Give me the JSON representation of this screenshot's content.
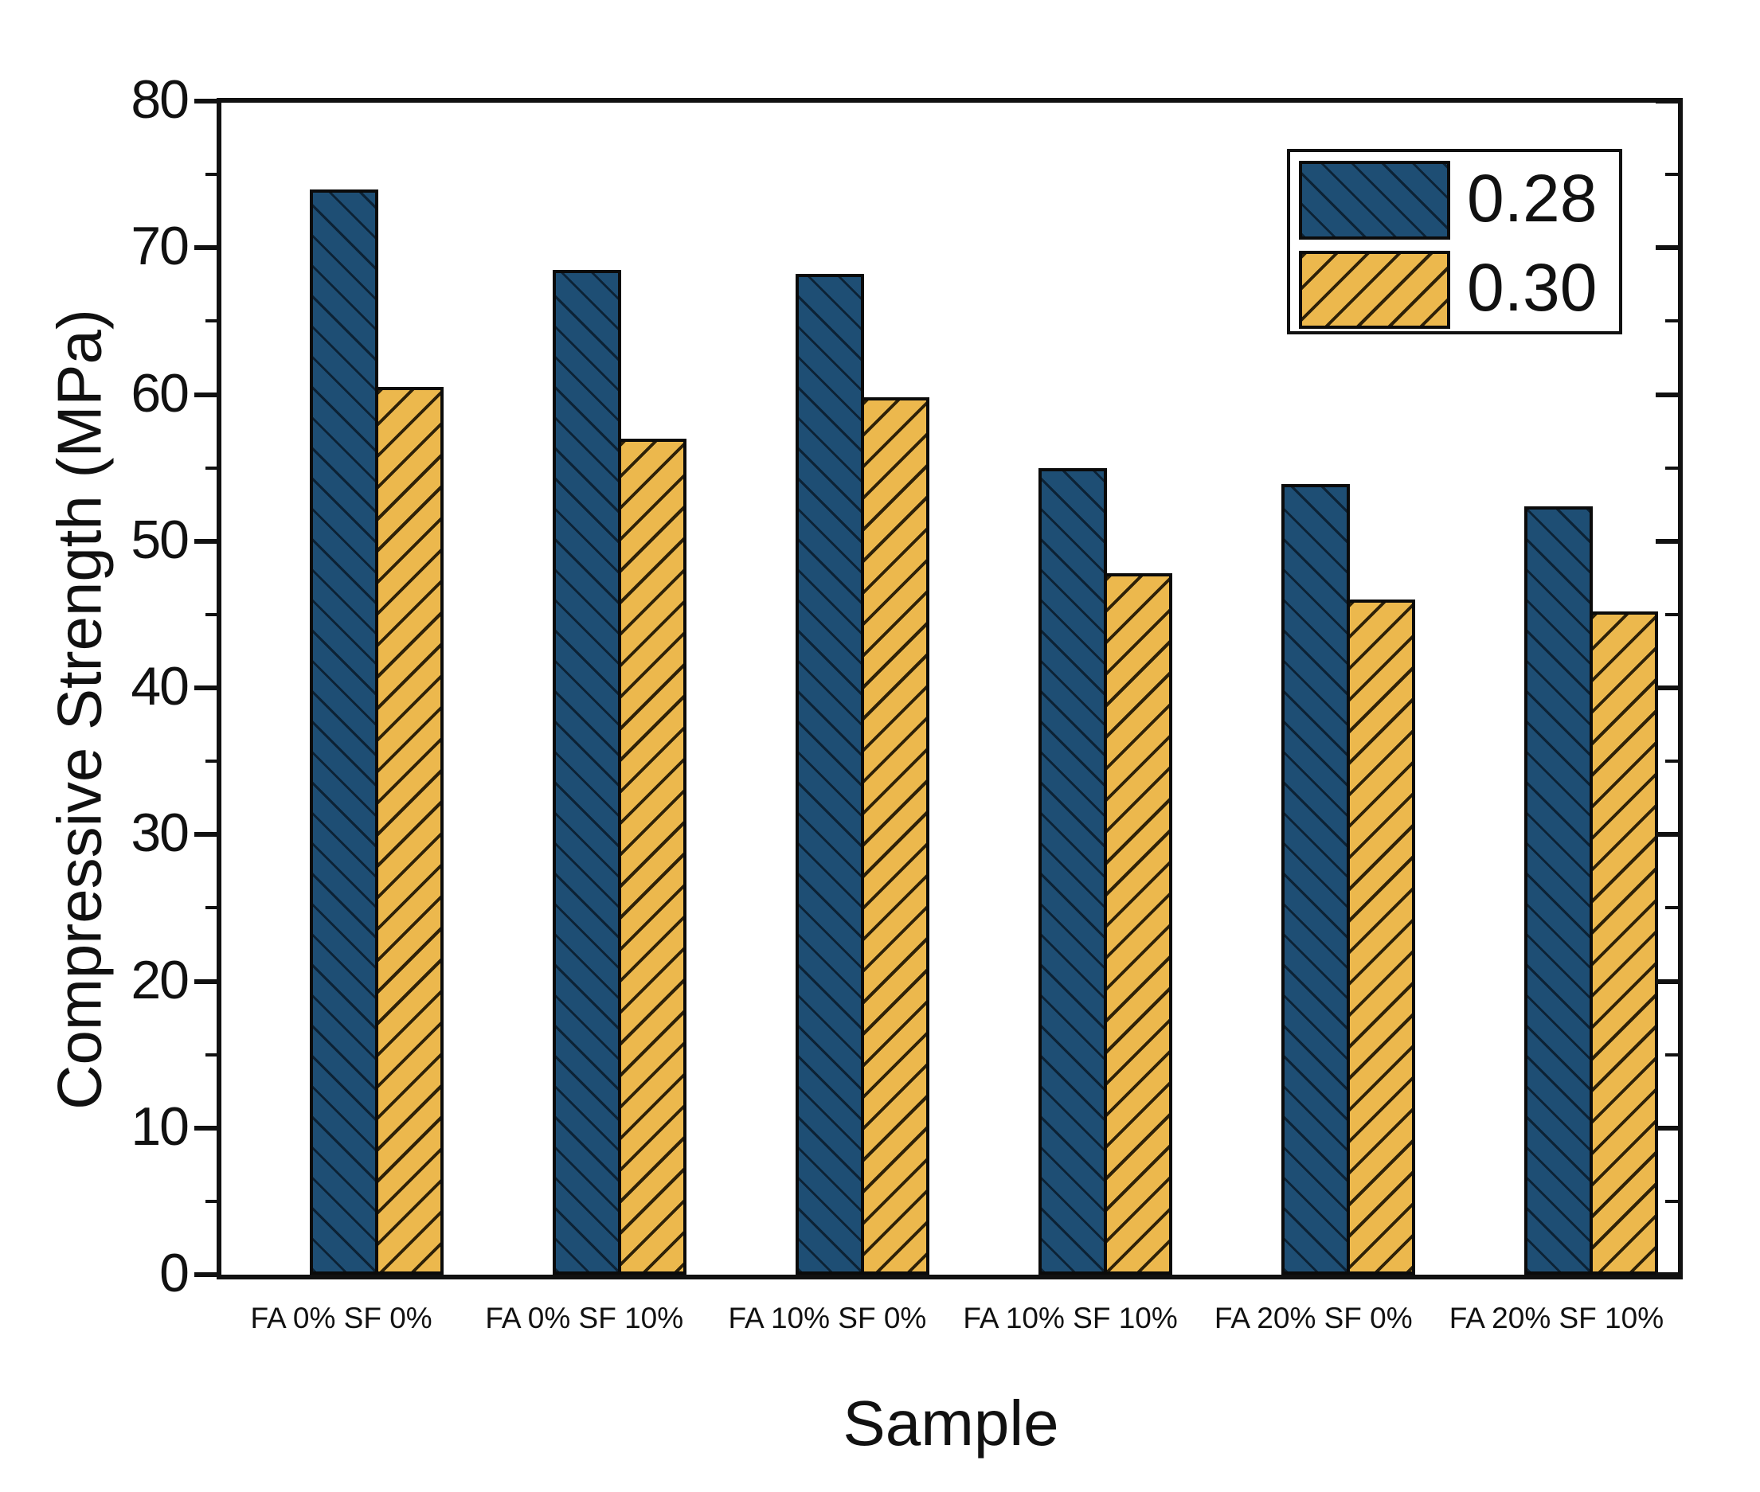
{
  "chart_data": {
    "type": "bar",
    "title": "",
    "xlabel": "Sample",
    "ylabel": "Compressive Strength (MPa)",
    "ylim": [
      0,
      80
    ],
    "y_major_ticks": [
      0,
      10,
      20,
      30,
      40,
      50,
      60,
      70,
      80
    ],
    "y_minor_ticks": [
      5,
      15,
      25,
      35,
      45,
      55,
      65,
      75
    ],
    "grid": "off",
    "legend_position": "top-right",
    "categories": [
      "FA 0% SF 0%",
      "FA 0% SF 10%",
      "FA 10% SF 0%",
      "FA 10% SF 10%",
      "FA 20% SF 0%",
      "FA 20% SF 10%"
    ],
    "series": [
      {
        "name": "0.28",
        "color": "#1e4e74",
        "hatch": "/",
        "values": [
          74.0,
          68.5,
          68.2,
          55.0,
          53.9,
          52.4
        ]
      },
      {
        "name": "0.30",
        "color": "#ecb84d",
        "hatch": "\\",
        "values": [
          60.5,
          57.0,
          59.8,
          47.8,
          46.0,
          45.2
        ]
      }
    ]
  }
}
